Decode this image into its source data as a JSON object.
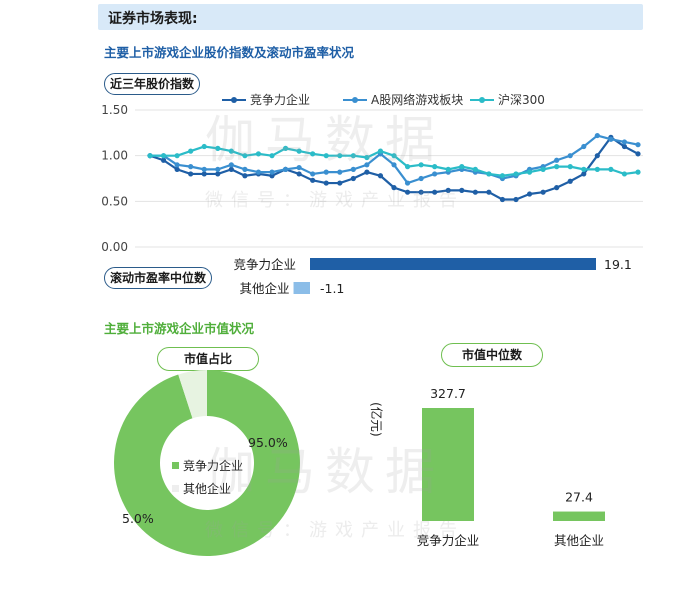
{
  "section_title": "证券市场表现:",
  "subtitle_stock": "主要上市游戏企业股价指数及滚动市盈率状况",
  "subtitle_mcap": "主要上市游戏企业市值状况",
  "watermark": {
    "line1": "伽马数据",
    "line2": "微信号：游戏产业报告"
  },
  "colors": {
    "competitive": "#1f5fa6",
    "a_share": "#3a8fd0",
    "hs300": "#2bbcc8",
    "green": "#76c55f",
    "light_green": "#e7f3e1",
    "light_blue": "#8bbde8"
  },
  "chart_data": [
    {
      "type": "line",
      "label_box": "近三年股价指数",
      "ylim": [
        0,
        1.5
      ],
      "y_ticks": [
        "0.00",
        "0.50",
        "1.00",
        "1.50"
      ],
      "series": [
        {
          "name": "竞争力企业",
          "values": [
            1.0,
            0.95,
            0.85,
            0.8,
            0.8,
            0.8,
            0.85,
            0.78,
            0.8,
            0.78,
            0.85,
            0.8,
            0.73,
            0.7,
            0.7,
            0.75,
            0.82,
            0.78,
            0.65,
            0.6,
            0.6,
            0.6,
            0.62,
            0.62,
            0.6,
            0.6,
            0.52,
            0.52,
            0.58,
            0.6,
            0.65,
            0.72,
            0.8,
            1.0,
            1.2,
            1.1,
            1.02
          ]
        },
        {
          "name": "A股网络游戏板块",
          "values": [
            1.0,
            1.0,
            0.9,
            0.88,
            0.85,
            0.85,
            0.9,
            0.85,
            0.82,
            0.82,
            0.85,
            0.87,
            0.8,
            0.82,
            0.82,
            0.85,
            0.9,
            1.02,
            0.9,
            0.7,
            0.75,
            0.8,
            0.82,
            0.85,
            0.82,
            0.8,
            0.75,
            0.78,
            0.85,
            0.88,
            0.95,
            1.0,
            1.1,
            1.22,
            1.18,
            1.15,
            1.12
          ]
        },
        {
          "name": "沪深300",
          "values": [
            1.0,
            1.0,
            1.0,
            1.05,
            1.1,
            1.08,
            1.05,
            1.0,
            1.02,
            1.0,
            1.08,
            1.05,
            1.02,
            1.0,
            1.0,
            1.0,
            0.98,
            1.05,
            1.0,
            0.88,
            0.9,
            0.88,
            0.85,
            0.88,
            0.85,
            0.8,
            0.78,
            0.8,
            0.82,
            0.85,
            0.88,
            0.88,
            0.85,
            0.85,
            0.85,
            0.8,
            0.82
          ]
        }
      ]
    },
    {
      "type": "bar",
      "label_box": "滚动市盈率中位数",
      "categories": [
        "竞争力企业",
        "其他企业"
      ],
      "values": [
        19.1,
        -1.1
      ],
      "value_labels": [
        "19.1",
        "-1.1"
      ]
    },
    {
      "type": "pie",
      "label_box": "市值占比",
      "categories": [
        "竞争力企业",
        "其他企业"
      ],
      "values": [
        95.0,
        5.0
      ],
      "value_labels": [
        "95.0%",
        "5.0%"
      ]
    },
    {
      "type": "bar",
      "label_box": "市值中位数",
      "ylabel": "(亿元)",
      "categories": [
        "竞争力企业",
        "其他企业"
      ],
      "values": [
        327.7,
        27.4
      ],
      "value_labels": [
        "327.7",
        "27.4"
      ]
    }
  ]
}
